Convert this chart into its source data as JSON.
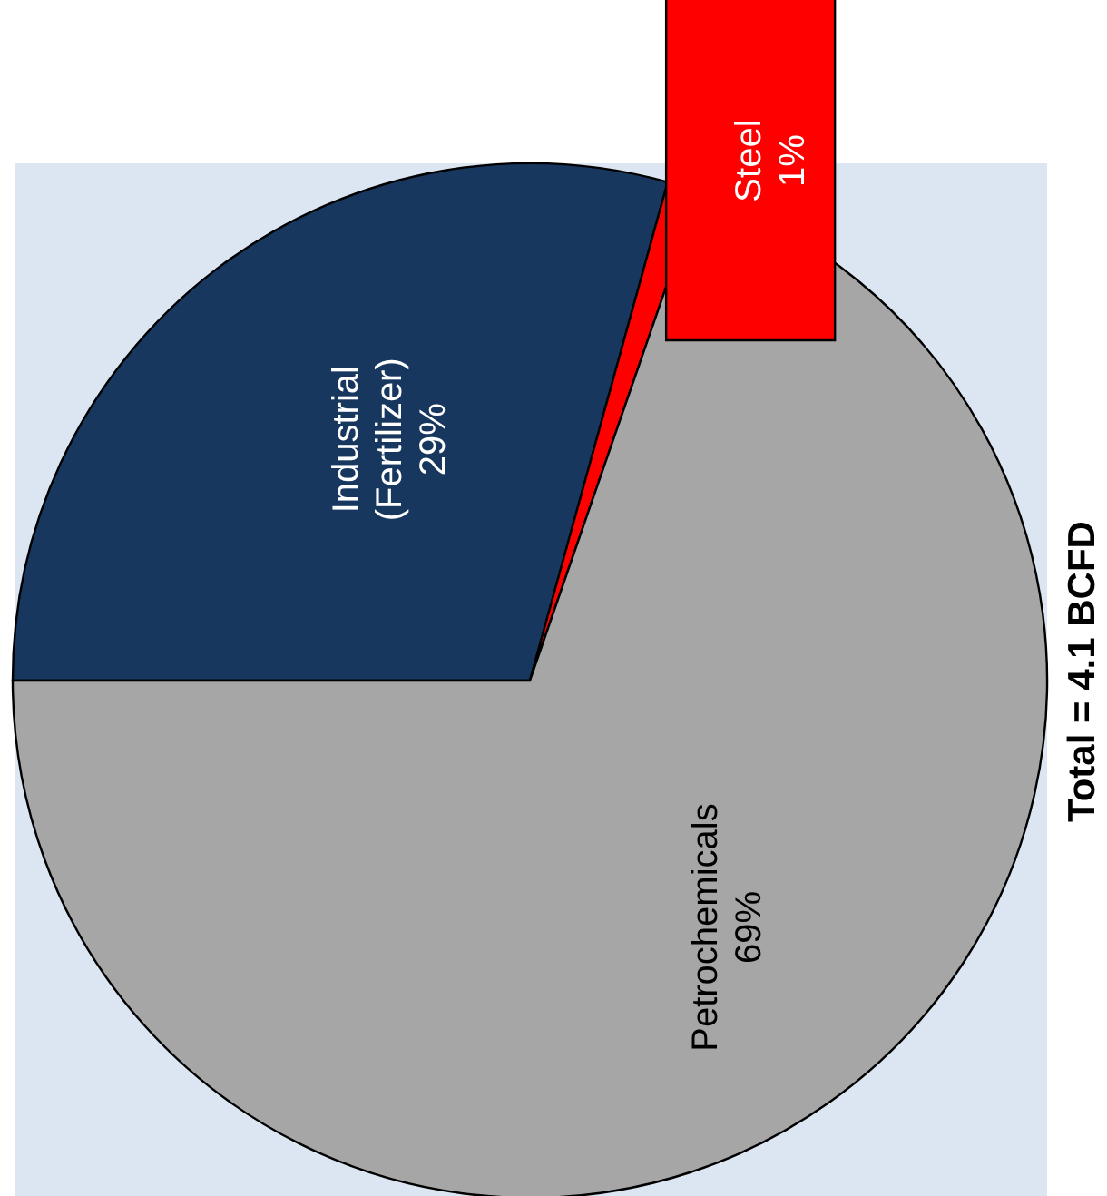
{
  "chart_data": {
    "type": "pie",
    "title": "Total = 4.1 BCFD",
    "categories": [
      "Industrial (Fertilizer)",
      "Steel",
      "Petrochemicals"
    ],
    "values": [
      29,
      1,
      69
    ],
    "colors": [
      "#17375e",
      "#ff0000",
      "#a6a6a6"
    ],
    "value_labels": [
      "29%",
      "1%",
      "69%"
    ]
  }
}
